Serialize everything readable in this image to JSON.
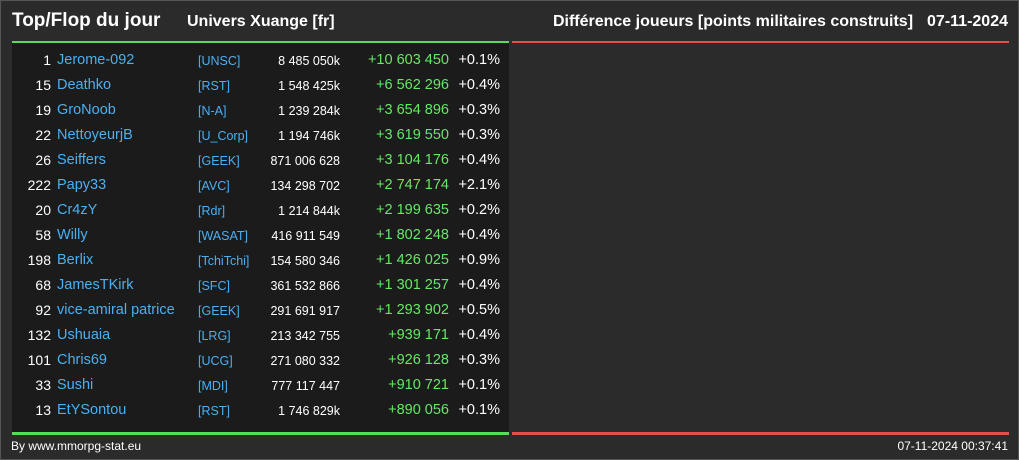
{
  "header": {
    "title": "Top/Flop du jour",
    "universe": "Univers Xuange [fr]",
    "category": "Différence joueurs [points militaires construits]",
    "date": "07-11-2024"
  },
  "colors": {
    "top": "#55dd55",
    "flop": "#dd5544",
    "name": "#4ab0f2",
    "gain": "#66e866"
  },
  "rows": [
    {
      "rank": "1",
      "name": "Jerome-092",
      "alliance": "[UNSC]",
      "points": "8 485 050k",
      "diff": "+10 603 450",
      "pct": "+0.1%"
    },
    {
      "rank": "15",
      "name": "Deathko",
      "alliance": "[RST]",
      "points": "1 548 425k",
      "diff": "+6 562 296",
      "pct": "+0.4%"
    },
    {
      "rank": "19",
      "name": "GroNoob",
      "alliance": "[N-A]",
      "points": "1 239 284k",
      "diff": "+3 654 896",
      "pct": "+0.3%"
    },
    {
      "rank": "22",
      "name": "NettoyeurjB",
      "alliance": "[U_Corp]",
      "points": "1 194 746k",
      "diff": "+3 619 550",
      "pct": "+0.3%"
    },
    {
      "rank": "26",
      "name": "Seiffers",
      "alliance": "[GEEK]",
      "points": "871 006 628",
      "diff": "+3 104 176",
      "pct": "+0.4%"
    },
    {
      "rank": "222",
      "name": "Papy33",
      "alliance": "[AVC]",
      "points": "134 298 702",
      "diff": "+2 747 174",
      "pct": "+2.1%"
    },
    {
      "rank": "20",
      "name": "Cr4zY",
      "alliance": "[Rdr]",
      "points": "1 214 844k",
      "diff": "+2 199 635",
      "pct": "+0.2%"
    },
    {
      "rank": "58",
      "name": "Willy",
      "alliance": "[WASAT]",
      "points": "416 911 549",
      "diff": "+1 802 248",
      "pct": "+0.4%"
    },
    {
      "rank": "198",
      "name": "Berlix",
      "alliance": "[TchiTchi]",
      "points": "154 580 346",
      "diff": "+1 426 025",
      "pct": "+0.9%"
    },
    {
      "rank": "68",
      "name": "JamesTKirk",
      "alliance": "[SFC]",
      "points": "361 532 866",
      "diff": "+1 301 257",
      "pct": "+0.4%"
    },
    {
      "rank": "92",
      "name": "vice-amiral patrice",
      "alliance": "[GEEK]",
      "points": "291 691 917",
      "diff": "+1 293 902",
      "pct": "+0.5%"
    },
    {
      "rank": "132",
      "name": "Ushuaia",
      "alliance": "[LRG]",
      "points": "213 342 755",
      "diff": "+939 171",
      "pct": "+0.4%"
    },
    {
      "rank": "101",
      "name": "Chris69",
      "alliance": "[UCG]",
      "points": "271 080 332",
      "diff": "+926 128",
      "pct": "+0.3%"
    },
    {
      "rank": "33",
      "name": "Sushi",
      "alliance": "[MDI]",
      "points": "777 117 447",
      "diff": "+910 721",
      "pct": "+0.1%"
    },
    {
      "rank": "13",
      "name": "EtYSontou",
      "alliance": "[RST]",
      "points": "1 746 829k",
      "diff": "+890 056",
      "pct": "+0.1%"
    }
  ],
  "footer": {
    "source": "By www.mmorpg-stat.eu",
    "timestamp": "07-11-2024 00:37:41"
  }
}
